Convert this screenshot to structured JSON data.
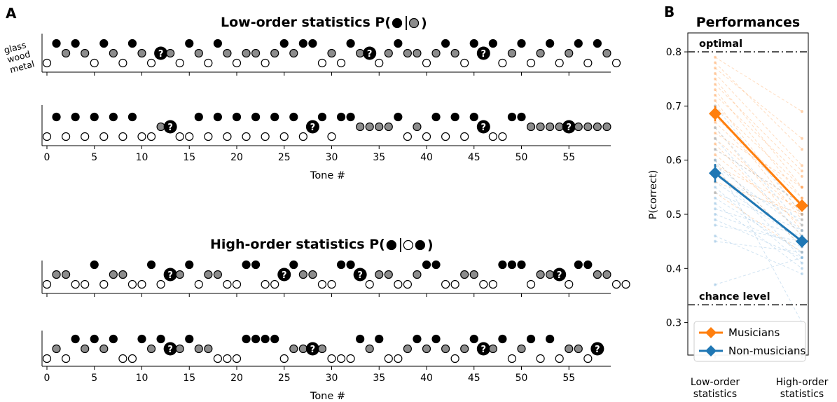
{
  "panel_labels": [
    "A",
    "B"
  ],
  "chart_data": [
    {
      "type": "scatter",
      "title": "Low-order statistics P(",
      "title_symbols": [
        "glass",
        "wood"
      ],
      "xlabel": "Tone #",
      "materials": [
        "glass",
        "wood",
        "metal"
      ],
      "xticks": [
        0,
        5,
        10,
        15,
        20,
        25,
        30,
        35,
        40,
        45,
        50,
        55
      ],
      "xlim": [
        -0.5,
        59.5
      ],
      "rows": [
        {
          "name": "example-1",
          "tones": [
            3,
            1,
            2,
            1,
            2,
            3,
            1,
            2,
            3,
            1,
            2,
            3,
            "?",
            2,
            3,
            1,
            2,
            3,
            1,
            2,
            3,
            2,
            2,
            3,
            2,
            1,
            2,
            1,
            1,
            3,
            2,
            3,
            1,
            2,
            "?",
            3,
            2,
            1,
            2,
            2,
            3,
            2,
            1,
            2,
            3,
            1,
            "?",
            1,
            3,
            2,
            1,
            3,
            2,
            1,
            3,
            2,
            1,
            3,
            1,
            2,
            3
          ]
        },
        {
          "name": "example-2",
          "tones": [
            3,
            1,
            3,
            1,
            3,
            1,
            3,
            1,
            3,
            1,
            3,
            3,
            2,
            "?",
            3,
            3,
            1,
            3,
            1,
            3,
            1,
            3,
            1,
            3,
            1,
            3,
            1,
            3,
            "?",
            1,
            3,
            1,
            1,
            2,
            2,
            2,
            2,
            1,
            3,
            2,
            3,
            1,
            3,
            1,
            3,
            1,
            "?",
            3,
            3,
            1,
            1,
            2,
            2,
            2,
            2,
            "?",
            2,
            2,
            2,
            2
          ]
        }
      ]
    },
    {
      "type": "scatter",
      "title": "High-order statistics P(",
      "title_symbols": [
        "glass",
        "metal",
        "glass"
      ],
      "xlabel": "Tone #",
      "materials": [
        "glass",
        "wood",
        "metal"
      ],
      "xticks": [
        0,
        5,
        10,
        15,
        20,
        25,
        30,
        35,
        40,
        45,
        50,
        55
      ],
      "xlim": [
        -0.5,
        59.5
      ],
      "rows": [
        {
          "name": "example-3",
          "tones": [
            3,
            2,
            2,
            3,
            3,
            1,
            3,
            2,
            2,
            3,
            3,
            1,
            3,
            "?",
            2,
            1,
            3,
            2,
            2,
            3,
            3,
            1,
            1,
            3,
            3,
            "?",
            1,
            2,
            2,
            3,
            3,
            1,
            1,
            "?",
            3,
            2,
            2,
            3,
            3,
            2,
            1,
            1,
            3,
            3,
            2,
            2,
            3,
            3,
            1,
            1,
            1,
            3,
            2,
            2,
            "?",
            3,
            1,
            1,
            2,
            2,
            3,
            3
          ]
        },
        {
          "name": "example-4",
          "tones": [
            3,
            2,
            3,
            1,
            2,
            1,
            2,
            1,
            3,
            3,
            1,
            2,
            1,
            "?",
            2,
            1,
            2,
            2,
            3,
            3,
            3,
            1,
            1,
            1,
            1,
            3,
            2,
            2,
            "?",
            2,
            3,
            3,
            3,
            1,
            2,
            1,
            3,
            3,
            2,
            1,
            2,
            1,
            2,
            3,
            2,
            1,
            "?",
            2,
            1,
            3,
            2,
            1,
            3,
            1,
            3,
            2,
            2,
            3,
            "?"
          ]
        }
      ]
    },
    {
      "type": "line",
      "title": "Performances",
      "ylabel": "P(correct)",
      "categories": [
        "Low-order\nstatistics",
        "High-order\nstatistics"
      ],
      "ylim": [
        0.24,
        0.835
      ],
      "yticks": [
        0.3,
        0.4,
        0.5,
        0.6,
        0.7,
        0.8
      ],
      "reference_lines": [
        {
          "label": "optimal",
          "value": 0.8
        },
        {
          "label": "chance level",
          "value": 0.333
        }
      ],
      "series": [
        {
          "name": "Musicians",
          "color": "#ff7f0e",
          "values": [
            0.686,
            0.516
          ],
          "err": [
            0.014,
            0.011
          ]
        },
        {
          "name": "Non-musicians",
          "color": "#1f77b4",
          "values": [
            0.576,
            0.45
          ],
          "err": [
            0.017,
            0.01
          ]
        }
      ],
      "individuals": {
        "Musicians": [
          [
            0.79,
            0.69
          ],
          [
            0.78,
            0.62
          ],
          [
            0.77,
            0.64
          ],
          [
            0.76,
            0.59
          ],
          [
            0.75,
            0.55
          ],
          [
            0.74,
            0.58
          ],
          [
            0.73,
            0.53
          ],
          [
            0.72,
            0.57
          ],
          [
            0.71,
            0.5
          ],
          [
            0.7,
            0.55
          ],
          [
            0.69,
            0.49
          ],
          [
            0.68,
            0.53
          ],
          [
            0.67,
            0.52
          ],
          [
            0.66,
            0.47
          ],
          [
            0.65,
            0.55
          ],
          [
            0.64,
            0.5
          ],
          [
            0.63,
            0.46
          ],
          [
            0.62,
            0.52
          ],
          [
            0.61,
            0.48
          ],
          [
            0.6,
            0.44
          ],
          [
            0.59,
            0.51
          ],
          [
            0.58,
            0.45
          ],
          [
            0.56,
            0.5
          ],
          [
            0.54,
            0.43
          ]
        ],
        "Non-musicians": [
          [
            0.7,
            0.5
          ],
          [
            0.66,
            0.48
          ],
          [
            0.64,
            0.46
          ],
          [
            0.62,
            0.52
          ],
          [
            0.6,
            0.44
          ],
          [
            0.59,
            0.47
          ],
          [
            0.58,
            0.42
          ],
          [
            0.57,
            0.49
          ],
          [
            0.56,
            0.45
          ],
          [
            0.55,
            0.41
          ],
          [
            0.54,
            0.47
          ],
          [
            0.53,
            0.43
          ],
          [
            0.52,
            0.4
          ],
          [
            0.51,
            0.46
          ],
          [
            0.5,
            0.44
          ],
          [
            0.49,
            0.42
          ],
          [
            0.48,
            0.45
          ],
          [
            0.46,
            0.39
          ],
          [
            0.45,
            0.43
          ],
          [
            0.37,
            0.42
          ],
          [
            0.6,
            0.3
          ]
        ]
      },
      "legend_position": "lower-left"
    }
  ]
}
